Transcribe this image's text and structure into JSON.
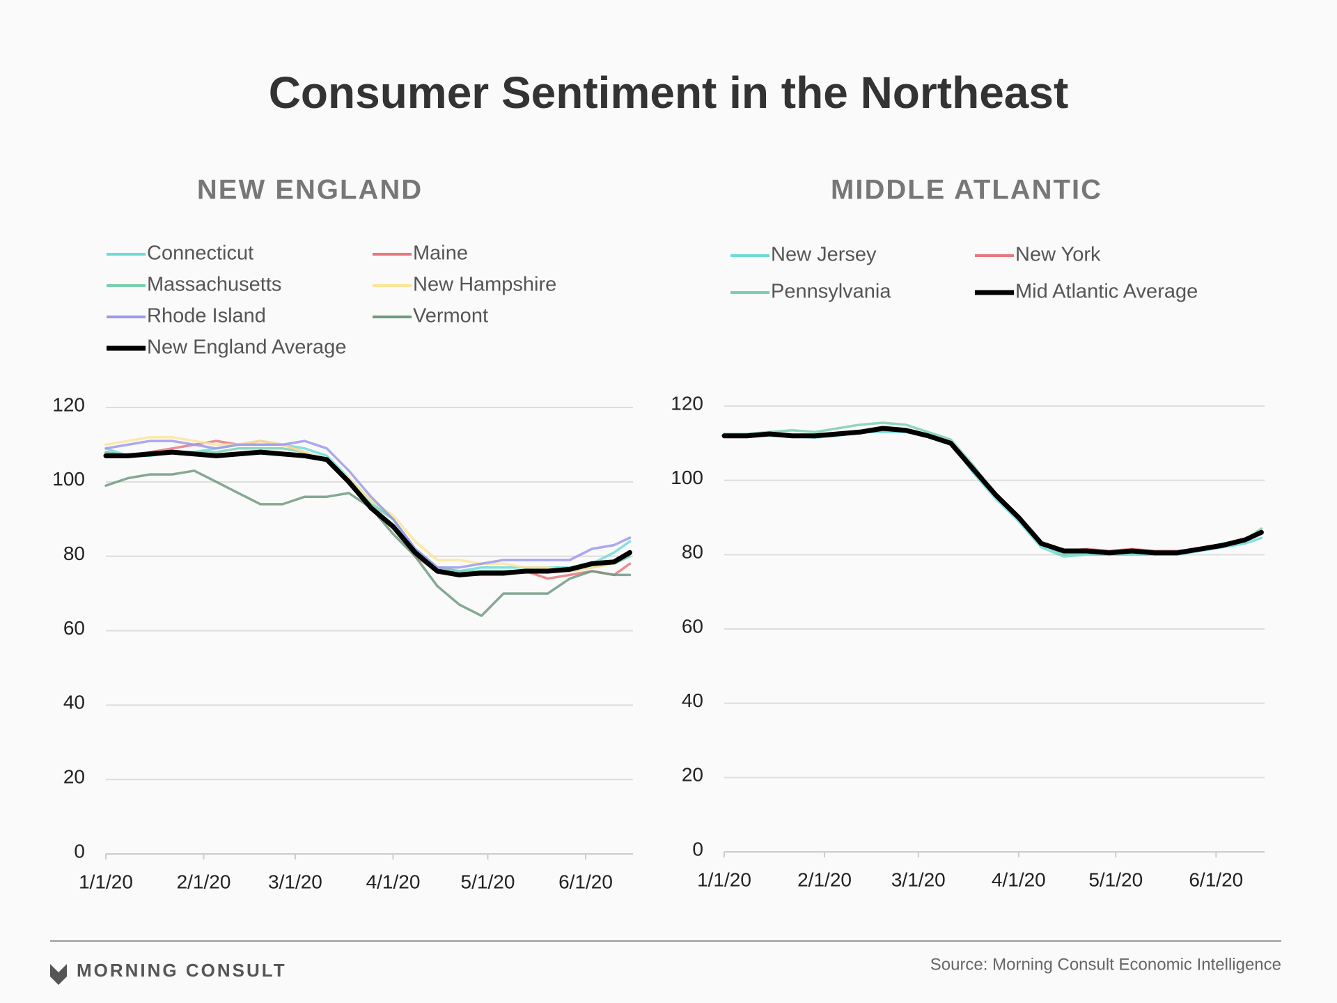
{
  "title": "Consumer Sentiment in the Northeast",
  "source": "Source: Morning Consult Economic Intelligence",
  "brand": "MORNING CONSULT",
  "chart_data": [
    {
      "type": "line",
      "title": "NEW ENGLAND",
      "x": [
        "1/1/20",
        "1/8/20",
        "1/15/20",
        "1/22/20",
        "1/29/20",
        "2/5/20",
        "2/12/20",
        "2/19/20",
        "2/26/20",
        "3/4/20",
        "3/11/20",
        "3/18/20",
        "3/25/20",
        "4/1/20",
        "4/8/20",
        "4/15/20",
        "4/22/20",
        "4/29/20",
        "5/6/20",
        "5/13/20",
        "5/20/20",
        "5/27/20",
        "6/3/20",
        "6/10/20",
        "6/15/20"
      ],
      "xlim": [
        "1/1/20",
        "6/16/20"
      ],
      "xticks": [
        "1/1/20",
        "2/1/20",
        "3/1/20",
        "4/1/20",
        "5/1/20",
        "6/1/20"
      ],
      "ylim": [
        0,
        120
      ],
      "yticks": [
        0,
        20,
        40,
        60,
        80,
        100,
        120
      ],
      "grid": true,
      "series": [
        {
          "name": "Connecticut",
          "color": "#6ddbdb",
          "values": [
            109,
            107,
            107,
            108,
            108,
            109,
            110,
            110,
            110,
            109,
            107,
            101,
            95,
            90,
            82,
            77,
            76,
            77,
            77,
            77,
            77,
            77,
            78,
            81,
            84
          ]
        },
        {
          "name": "Maine",
          "color": "#e8787e",
          "values": [
            108,
            107,
            108,
            109,
            110,
            111,
            110,
            111,
            110,
            108,
            106,
            100,
            93,
            88,
            80,
            76,
            75,
            75,
            75,
            76,
            74,
            75,
            76,
            75,
            78
          ]
        },
        {
          "name": "Massachusetts",
          "color": "#7ccfae",
          "values": [
            108,
            107,
            107,
            108,
            108,
            108,
            109,
            109,
            109,
            108,
            106,
            100,
            94,
            90,
            82,
            77,
            76,
            76,
            76,
            76,
            76,
            76,
            77,
            78,
            80
          ]
        },
        {
          "name": "New Hampshire",
          "color": "#fde49a",
          "values": [
            110,
            111,
            112,
            112,
            111,
            110,
            110,
            111,
            110,
            108,
            106,
            101,
            95,
            91,
            84,
            79,
            79,
            78,
            78,
            77,
            77,
            76,
            77,
            78,
            81
          ]
        },
        {
          "name": "Rhode Island",
          "color": "#9b99ee",
          "values": [
            109,
            110,
            111,
            111,
            110,
            109,
            110,
            110,
            110,
            111,
            109,
            103,
            96,
            90,
            82,
            77,
            77,
            78,
            79,
            79,
            79,
            79,
            82,
            83,
            85
          ]
        },
        {
          "name": "Vermont",
          "color": "#6f9a83",
          "values": [
            99,
            101,
            102,
            102,
            103,
            100,
            97,
            94,
            94,
            96,
            96,
            97,
            93,
            86,
            80,
            72,
            67,
            64,
            70,
            70,
            70,
            74,
            76,
            75,
            75
          ]
        },
        {
          "name": "New England Average",
          "color": "#000000",
          "values": [
            107,
            107,
            107.5,
            108,
            107.5,
            107,
            107.5,
            108,
            107.5,
            107,
            106,
            100,
            93,
            88,
            81,
            76,
            75,
            75.5,
            75.5,
            76,
            76,
            76.5,
            78,
            78.5,
            81
          ]
        }
      ]
    },
    {
      "type": "line",
      "title": "MIDDLE ATLANTIC",
      "x": [
        "1/1/20",
        "1/8/20",
        "1/15/20",
        "1/22/20",
        "1/29/20",
        "2/5/20",
        "2/12/20",
        "2/19/20",
        "2/26/20",
        "3/4/20",
        "3/11/20",
        "3/18/20",
        "3/25/20",
        "4/1/20",
        "4/8/20",
        "4/15/20",
        "4/22/20",
        "4/29/20",
        "5/6/20",
        "5/13/20",
        "5/20/20",
        "5/27/20",
        "6/3/20",
        "6/10/20",
        "6/15/20"
      ],
      "xlim": [
        "1/1/20",
        "6/16/20"
      ],
      "xticks": [
        "1/1/20",
        "2/1/20",
        "3/1/20",
        "4/1/20",
        "5/1/20",
        "6/1/20"
      ],
      "ylim": [
        0,
        120
      ],
      "yticks": [
        0,
        20,
        40,
        60,
        80,
        100,
        120
      ],
      "grid": true,
      "series": [
        {
          "name": "New Jersey",
          "color": "#6ddbdb",
          "values": [
            112,
            112,
            112,
            112,
            111.5,
            112,
            113,
            113,
            113,
            112,
            110,
            102,
            95,
            89,
            82,
            79.5,
            80,
            80,
            80,
            80,
            80,
            81,
            82,
            83,
            84.5
          ]
        },
        {
          "name": "New York",
          "color": "#e8787e",
          "values": [
            112,
            112,
            112.5,
            112,
            112,
            112.5,
            113,
            113.5,
            113.5,
            112,
            110,
            103,
            96,
            90,
            83,
            81,
            81.5,
            81,
            81.5,
            81,
            81,
            81.5,
            82.5,
            84,
            86
          ]
        },
        {
          "name": "Pennsylvania",
          "color": "#7ccfae",
          "values": [
            112.5,
            112.5,
            113,
            113.5,
            113,
            114,
            115,
            115.5,
            115,
            113,
            111,
            104,
            96,
            90,
            83,
            80,
            80.5,
            80.5,
            80.5,
            80.5,
            80.5,
            81.5,
            83,
            84,
            87
          ]
        },
        {
          "name": "Mid Atlantic Average",
          "color": "#000000",
          "values": [
            112,
            112,
            112.5,
            112,
            112,
            112.5,
            113,
            114,
            113.5,
            112,
            110,
            103,
            96,
            90,
            83,
            81,
            81,
            80.5,
            81,
            80.5,
            80.5,
            81.5,
            82.5,
            84,
            86
          ]
        }
      ]
    }
  ]
}
